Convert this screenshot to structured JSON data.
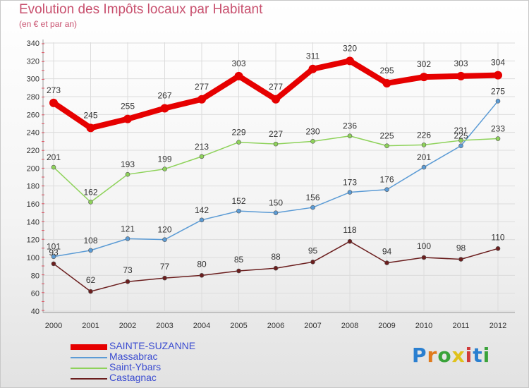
{
  "title": "Evolution des Impôts locaux par Habitant",
  "subtitle": "(en € et par an)",
  "logo": {
    "text": "Proxiti",
    "colors": [
      "#2a7fd0",
      "#e07a1c",
      "#3aa33a",
      "#e0c21c",
      "#d13a3a",
      "#2a7fd0",
      "#3aa33a"
    ]
  },
  "chart_data": {
    "type": "line",
    "title": "Evolution des Impôts locaux par Habitant",
    "subtitle": "(en € et par an)",
    "xlabel": "",
    "ylabel": "",
    "categories": [
      "2000",
      "2001",
      "2002",
      "2003",
      "2004",
      "2005",
      "2006",
      "2007",
      "2008",
      "2009",
      "2010",
      "2011",
      "2012"
    ],
    "ylim": [
      40,
      340
    ],
    "yticks": [
      40,
      60,
      80,
      100,
      120,
      140,
      160,
      180,
      200,
      220,
      240,
      260,
      280,
      300,
      320,
      340
    ],
    "grid": true,
    "legend_position": "bottom-left",
    "series": [
      {
        "name": "SAINTE-SUZANNE",
        "color": "#e60000",
        "values": [
          273,
          245,
          255,
          267,
          277,
          303,
          277,
          311,
          320,
          295,
          302,
          303,
          304
        ]
      },
      {
        "name": "Massabrac",
        "color": "#5b9bd5",
        "values": [
          101,
          108,
          121,
          120,
          142,
          152,
          150,
          156,
          173,
          176,
          201,
          225,
          275
        ]
      },
      {
        "name": "Saint-Ybars",
        "color": "#8ed25a",
        "values": [
          201,
          162,
          193,
          199,
          213,
          229,
          227,
          230,
          236,
          225,
          226,
          231,
          233
        ]
      },
      {
        "name": "Castagnac",
        "color": "#6b1e1e",
        "values": [
          93,
          62,
          73,
          77,
          80,
          85,
          88,
          95,
          118,
          94,
          100,
          98,
          110
        ]
      }
    ]
  }
}
